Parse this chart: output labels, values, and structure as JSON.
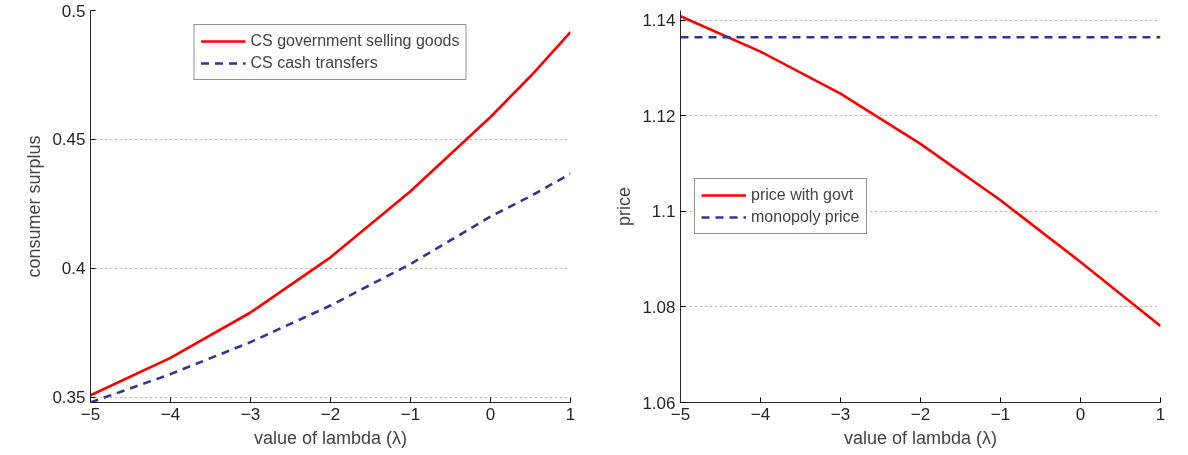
{
  "chart_data": [
    {
      "type": "line",
      "xlabel": "value of lambda (λ)",
      "ylabel": "consumer surplus",
      "x": [
        -5,
        -4,
        -3,
        -2,
        -1,
        0,
        0.5,
        1
      ],
      "xlim": [
        -5,
        1
      ],
      "xticks": [
        -5,
        -4,
        -3,
        -2,
        -1,
        0,
        1
      ],
      "ylim": [
        0.348,
        0.5
      ],
      "yticks": [
        0.35,
        0.4,
        0.45,
        0.5
      ],
      "grid": "y",
      "legend": "top",
      "series": [
        {
          "name": "CS government selling goods",
          "color": "#ff0000",
          "line_style": "solid",
          "values": [
            0.3508,
            0.3653,
            0.3829,
            0.4043,
            0.4299,
            0.4587,
            0.4745,
            0.4916
          ]
        },
        {
          "name": "CS cash transfers",
          "color": "#333399",
          "line_style": "dashed",
          "values": [
            0.348,
            0.359,
            0.3714,
            0.3856,
            0.4017,
            0.4201,
            0.428,
            0.4367
          ]
        }
      ]
    },
    {
      "type": "line",
      "xlabel": "value of lambda (λ)",
      "ylabel": "price",
      "x": [
        -5,
        -4,
        -3,
        -2,
        -1,
        0,
        1
      ],
      "xlim": [
        -5,
        1
      ],
      "xticks": [
        -5,
        -4,
        -3,
        -2,
        -1,
        0,
        1
      ],
      "ylim": [
        1.06,
        1.142
      ],
      "yticks": [
        1.06,
        1.08,
        1.1,
        1.12,
        1.14
      ],
      "grid": "y",
      "legend": "left",
      "series": [
        {
          "name": "price with govt",
          "color": "#ff0000",
          "line_style": "solid",
          "values": [
            1.1408,
            1.1334,
            1.1246,
            1.1141,
            1.1023,
            1.0894,
            1.076
          ]
        },
        {
          "name": "monopoly price",
          "color": "#333399",
          "line_style": "dashed",
          "values": [
            1.1364,
            1.1364,
            1.1364,
            1.1364,
            1.1364,
            1.1364,
            1.1364
          ]
        }
      ]
    }
  ]
}
